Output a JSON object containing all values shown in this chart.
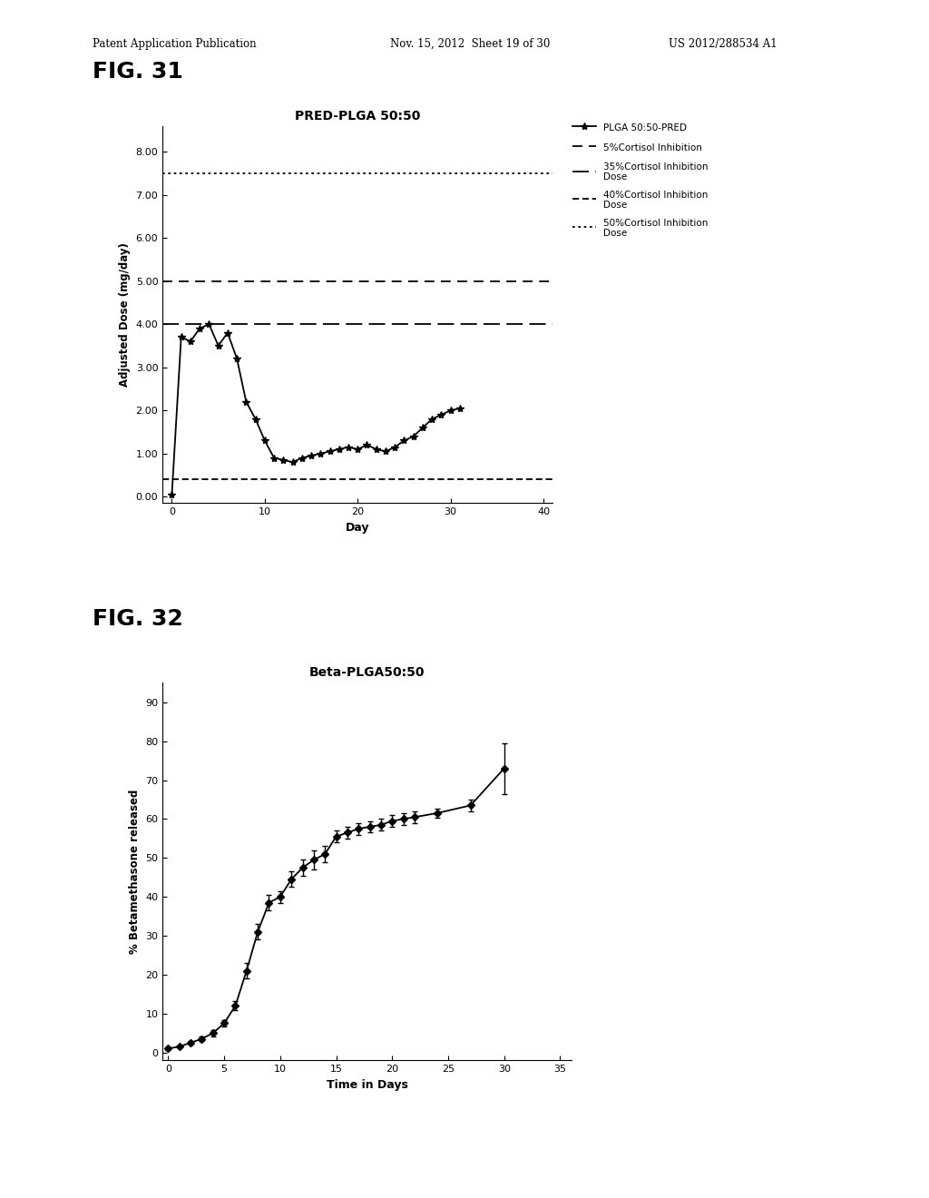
{
  "fig31": {
    "title": "PRED-PLGA 50:50",
    "xlabel": "Day",
    "ylabel": "Adjusted Dose (mg/day)",
    "xlim": [
      -1,
      41
    ],
    "ylim": [
      -0.15,
      8.6
    ],
    "xticks": [
      0,
      10,
      20,
      30,
      40
    ],
    "yticks": [
      0.0,
      1.0,
      2.0,
      3.0,
      4.0,
      5.0,
      6.0,
      7.0,
      8.0
    ],
    "line_x": [
      0,
      1,
      2,
      3,
      4,
      5,
      6,
      7,
      8,
      9,
      10,
      11,
      12,
      13,
      14,
      15,
      16,
      17,
      18,
      19,
      20,
      21,
      22,
      23,
      24,
      25,
      26,
      27,
      28,
      29,
      30,
      31
    ],
    "line_y": [
      0.05,
      3.7,
      3.6,
      3.9,
      4.0,
      3.5,
      3.8,
      3.2,
      2.2,
      1.8,
      1.3,
      0.9,
      0.85,
      0.8,
      0.9,
      0.95,
      1.0,
      1.05,
      1.1,
      1.15,
      1.1,
      1.2,
      1.1,
      1.05,
      1.15,
      1.3,
      1.4,
      1.6,
      1.8,
      1.9,
      2.0,
      2.05
    ],
    "ref_line_50pct_y": 7.5,
    "ref_line_5pct_y": 5.0,
    "ref_line_35pct_y": 4.0,
    "ref_line_40pct_y": 0.4,
    "line_label": "PLGA 50:50-PRED",
    "legend_labels": [
      "PLGA 50:50-PRED",
      "5%Cortisol Inhibition",
      "35%Cortisol Inhibition\nDose",
      "40%Cortisol Inhibition\nDose",
      "50%Cortisol Inhibition\nDose"
    ]
  },
  "fig32": {
    "title": "Beta-PLGA50:50",
    "xlabel": "Time in Days",
    "ylabel": "% Betamethasone released",
    "xlim": [
      -0.5,
      36
    ],
    "ylim": [
      -2,
      95
    ],
    "xticks": [
      0,
      5,
      10,
      15,
      20,
      25,
      30,
      35
    ],
    "yticks": [
      0,
      10,
      20,
      30,
      40,
      50,
      60,
      70,
      80,
      90
    ],
    "line_x": [
      0,
      1,
      2,
      3,
      4,
      5,
      6,
      7,
      8,
      9,
      10,
      11,
      12,
      13,
      14,
      15,
      16,
      17,
      18,
      19,
      20,
      21,
      22,
      24,
      27,
      30
    ],
    "line_y": [
      1.0,
      1.5,
      2.5,
      3.5,
      5.0,
      7.5,
      12.0,
      21.0,
      31.0,
      38.5,
      40.0,
      44.5,
      47.5,
      49.5,
      51.0,
      55.5,
      56.5,
      57.5,
      58.0,
      58.5,
      59.5,
      60.0,
      60.5,
      61.5,
      63.5,
      73.0
    ],
    "line_yerr": [
      0.3,
      0.3,
      0.5,
      0.5,
      0.8,
      0.8,
      1.2,
      2.0,
      2.0,
      2.0,
      1.5,
      2.0,
      2.0,
      2.5,
      2.0,
      1.5,
      1.5,
      1.5,
      1.5,
      1.5,
      1.5,
      1.5,
      1.5,
      1.2,
      1.5,
      6.5
    ]
  },
  "header_left": "Patent Application Publication",
  "header_mid": "Nov. 15, 2012  Sheet 19 of 30",
  "header_right": "US 2012/288534 A1",
  "bg_color": "#ffffff",
  "text_color": "#000000"
}
